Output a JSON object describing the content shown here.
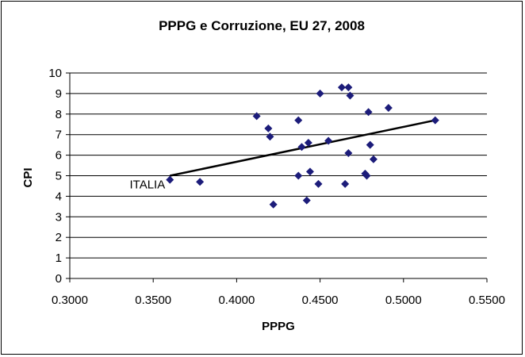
{
  "chart_data": {
    "type": "scatter",
    "title": "PPPG e Corruzione, EU 27, 2008",
    "xlabel": "PPPG",
    "ylabel": "CPI",
    "xlim": [
      0.3,
      0.55
    ],
    "ylim": [
      0,
      10
    ],
    "xticks": [
      "0.3000",
      "0.3500",
      "0.4000",
      "0.4500",
      "0.5000",
      "0.5500"
    ],
    "yticks": [
      "0",
      "1",
      "2",
      "3",
      "4",
      "5",
      "6",
      "7",
      "8",
      "9",
      "10"
    ],
    "grid": "horizontal",
    "legend": "none",
    "points": [
      {
        "x": 0.36,
        "y": 4.8
      },
      {
        "x": 0.378,
        "y": 4.7
      },
      {
        "x": 0.412,
        "y": 7.9
      },
      {
        "x": 0.419,
        "y": 7.3
      },
      {
        "x": 0.42,
        "y": 6.9
      },
      {
        "x": 0.422,
        "y": 3.6
      },
      {
        "x": 0.437,
        "y": 7.7
      },
      {
        "x": 0.437,
        "y": 5.0
      },
      {
        "x": 0.439,
        "y": 6.4
      },
      {
        "x": 0.442,
        "y": 3.8
      },
      {
        "x": 0.443,
        "y": 6.6
      },
      {
        "x": 0.444,
        "y": 5.2
      },
      {
        "x": 0.449,
        "y": 4.6
      },
      {
        "x": 0.45,
        "y": 9.0
      },
      {
        "x": 0.455,
        "y": 6.7
      },
      {
        "x": 0.463,
        "y": 9.3
      },
      {
        "x": 0.465,
        "y": 4.6
      },
      {
        "x": 0.467,
        "y": 6.1
      },
      {
        "x": 0.467,
        "y": 9.3
      },
      {
        "x": 0.468,
        "y": 8.9
      },
      {
        "x": 0.477,
        "y": 5.1
      },
      {
        "x": 0.478,
        "y": 5.0
      },
      {
        "x": 0.479,
        "y": 8.1
      },
      {
        "x": 0.48,
        "y": 6.5
      },
      {
        "x": 0.482,
        "y": 5.8
      },
      {
        "x": 0.491,
        "y": 8.3
      },
      {
        "x": 0.519,
        "y": 7.7
      }
    ],
    "trendline": {
      "x": [
        0.36,
        0.519
      ],
      "y": [
        5.0,
        7.7
      ]
    },
    "annotation": {
      "text": "ITALIA",
      "x": 0.36,
      "y": 4.8
    },
    "point_color": "#1c1c7a"
  }
}
